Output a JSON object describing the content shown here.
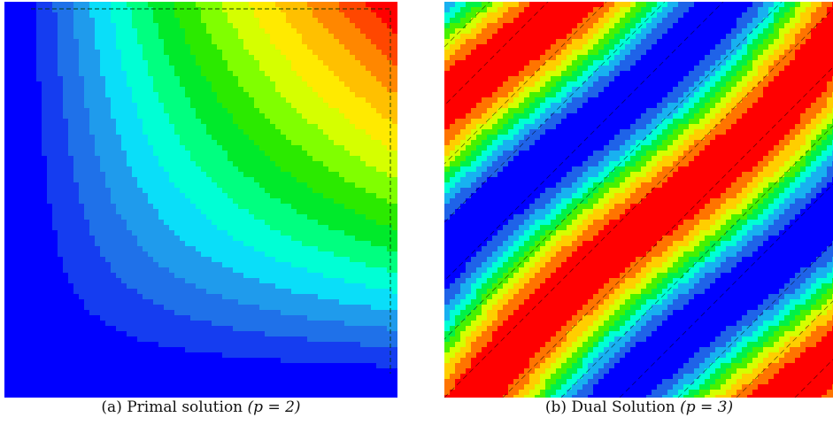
{
  "figure": {
    "panels": [
      {
        "caption_label": "(a)",
        "caption_text": "Primal solution",
        "caption_math": "(p = 2)"
      },
      {
        "caption_label": "(b)",
        "caption_text": "Dual Solution",
        "caption_math": "(p = 3)"
      }
    ]
  },
  "colormap": [
    "#0000ff",
    "#1f5ce8",
    "#1f9bec",
    "#00ffff",
    "#00ff80",
    "#00e000",
    "#80ff00",
    "#ffff00",
    "#ffc000",
    "#ff6a00",
    "#ff0000"
  ],
  "chart_data": [
    {
      "type": "heatmap",
      "plot_style": "filled contour with dashed contour lines",
      "domain": {
        "x": [
          0,
          1
        ],
        "y": [
          0,
          1
        ]
      },
      "field": "primal",
      "levels": 16,
      "max_location": "top-right",
      "min_location": "left and bottom edges",
      "title": "",
      "xlabel": "",
      "ylabel": ""
    },
    {
      "type": "heatmap",
      "plot_style": "filled contour with dashed contour lines",
      "domain": {
        "x": [
          0,
          1
        ],
        "y": [
          0,
          1
        ]
      },
      "field": "dual",
      "levels": 10,
      "pattern": "diagonal oscillating bands",
      "title": "",
      "xlabel": "",
      "ylabel": ""
    }
  ]
}
